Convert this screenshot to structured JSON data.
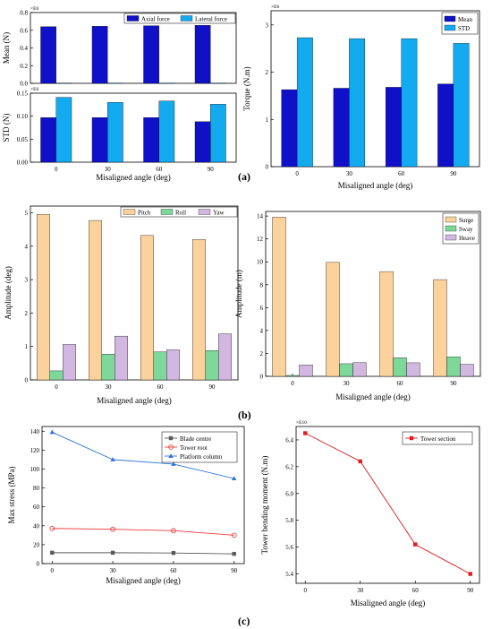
{
  "panel_labels": {
    "a": "(a)",
    "b": "(b)",
    "c": "(c)"
  },
  "colors": {
    "dark_blue": "#1010c8",
    "light_blue": "#14aaf0",
    "orange": "#fcd29c",
    "green": "#7dd89a",
    "purple": "#d2b8e0",
    "blade": "#5a5a5a",
    "tower": "#f03c3c",
    "platform": "#2e74d6",
    "tower_section": "#e31a1a"
  },
  "chart_data": [
    {
      "id": "a1",
      "type": "bar",
      "categories": [
        "0",
        "30",
        "60",
        "90"
      ],
      "series": [
        {
          "name": "Axial force",
          "values": [
            0.64,
            0.645,
            0.65,
            0.655
          ],
          "color_key": "dark_blue"
        },
        {
          "name": "Lateral force",
          "values": [
            0.004,
            0.004,
            0.004,
            0.004
          ],
          "color_key": "light_blue"
        }
      ],
      "ylabel": "Mean (N)",
      "xlabel": "",
      "scale_label": "×E6",
      "ylim": [
        0,
        0.8
      ],
      "yticks": [
        0,
        0.2,
        0.4,
        0.6,
        0.8
      ],
      "ytick_labels": [
        "0.0",
        "0.2",
        "0.4",
        "0.6",
        "0.8"
      ],
      "legend": "top-right",
      "show_xticks": false
    },
    {
      "id": "a2",
      "type": "bar",
      "categories": [
        "0",
        "30",
        "60",
        "90"
      ],
      "series": [
        {
          "name": "Axial force",
          "values": [
            0.097,
            0.097,
            0.097,
            0.088
          ],
          "color_key": "dark_blue"
        },
        {
          "name": "Lateral force",
          "values": [
            0.141,
            0.13,
            0.133,
            0.126
          ],
          "color_key": "light_blue"
        }
      ],
      "ylabel": "STD (N)",
      "xlabel": "Misaligned angle (deg)",
      "scale_label": "×E6",
      "ylim": [
        0,
        0.15
      ],
      "yticks": [
        0,
        0.05,
        0.1,
        0.15
      ],
      "ytick_labels": [
        "0.00",
        "0.05",
        "0.10",
        "0.15"
      ],
      "legend": "none",
      "show_xticks": true
    },
    {
      "id": "a3",
      "type": "bar",
      "categories": [
        "0",
        "30",
        "60",
        "90"
      ],
      "series": [
        {
          "name": "Mean",
          "values": [
            1.63,
            1.66,
            1.68,
            1.75
          ],
          "color_key": "dark_blue"
        },
        {
          "name": "STD",
          "values": [
            2.73,
            2.71,
            2.71,
            2.61
          ],
          "color_key": "light_blue"
        }
      ],
      "ylabel": "Torque (N.m)",
      "xlabel": "Misaligned angle (deg)",
      "scale_label": "×E6",
      "ylim": [
        0,
        3.3
      ],
      "yticks": [
        0,
        1,
        2,
        3
      ],
      "ytick_labels": [
        "0",
        "1",
        "2",
        "3"
      ],
      "legend": "top-right",
      "show_xticks": true
    },
    {
      "id": "b1",
      "type": "bar",
      "categories": [
        "0",
        "30",
        "60",
        "90"
      ],
      "series": [
        {
          "name": "Pitch",
          "values": [
            4.95,
            4.77,
            4.32,
            4.2
          ],
          "color_key": "orange"
        },
        {
          "name": "Roll",
          "values": [
            0.27,
            0.77,
            0.84,
            0.88
          ],
          "color_key": "green"
        },
        {
          "name": "Yaw",
          "values": [
            1.06,
            1.31,
            0.9,
            1.38
          ],
          "color_key": "purple"
        }
      ],
      "ylabel": "Amplitude (deg)",
      "xlabel": "Misaligned angle (deg)",
      "ylim": [
        0,
        5.2
      ],
      "yticks": [
        0,
        1,
        2,
        3,
        4,
        5
      ],
      "ytick_labels": [
        "0",
        "1",
        "2",
        "3",
        "4",
        "5"
      ],
      "legend": "top-right",
      "show_xticks": true
    },
    {
      "id": "b2",
      "type": "bar",
      "categories": [
        "0",
        "30",
        "60",
        "90"
      ],
      "series": [
        {
          "name": "Surge",
          "values": [
            13.9,
            9.95,
            9.15,
            8.45
          ],
          "color_key": "orange"
        },
        {
          "name": "Sway",
          "values": [
            0.08,
            1.1,
            1.63,
            1.7
          ],
          "color_key": "green"
        },
        {
          "name": "Heave",
          "values": [
            1.0,
            1.2,
            1.18,
            1.05
          ],
          "color_key": "purple"
        }
      ],
      "ylabel": "Amplitude (m)",
      "xlabel": "Misaligned angle (deg)",
      "ylim": [
        0,
        14.4
      ],
      "yticks": [
        0,
        2,
        4,
        6,
        8,
        10,
        12,
        14
      ],
      "ytick_labels": [
        "0",
        "2",
        "4",
        "6",
        "8",
        "10",
        "12",
        "14"
      ],
      "legend": "top-right",
      "show_xticks": true
    },
    {
      "id": "c1",
      "type": "line",
      "x": [
        0,
        30,
        60,
        90
      ],
      "series": [
        {
          "name": "Blade centre",
          "values": [
            11.5,
            11.5,
            11.2,
            10.3
          ],
          "color_key": "blade",
          "marker": "square"
        },
        {
          "name": "Tower root",
          "values": [
            37.2,
            36.3,
            34.8,
            30.0
          ],
          "color_key": "tower",
          "marker": "circle"
        },
        {
          "name": "Platform column",
          "values": [
            139,
            110,
            105.3,
            90
          ],
          "color_key": "platform",
          "marker": "triangle"
        }
      ],
      "ylabel": "Max stress (MPa)",
      "xlabel": "Misaligned angle (deg)",
      "xlim": [
        -5,
        95
      ],
      "xticks": [
        0,
        30,
        60,
        90
      ],
      "ylim": [
        0,
        145
      ],
      "yticks": [
        0,
        20,
        40,
        60,
        80,
        100,
        120,
        140
      ],
      "ytick_labels": [
        "0",
        "20",
        "40",
        "60",
        "80",
        "100",
        "120",
        "140"
      ],
      "legend": "top-right"
    },
    {
      "id": "c2",
      "type": "line",
      "x": [
        0,
        30,
        60,
        90
      ],
      "series": [
        {
          "name": "Tower section",
          "values": [
            6.45,
            6.24,
            5.62,
            5.4
          ],
          "color_key": "tower_section",
          "marker": "square"
        }
      ],
      "ylabel": "Tower bending moment (N.m)",
      "xlabel": "Misaligned angle (deg)",
      "scale_label": "×E10",
      "xlim": [
        -5,
        95
      ],
      "xticks": [
        0,
        30,
        60,
        90
      ],
      "ylim": [
        5.33,
        6.5
      ],
      "yticks": [
        5.4,
        5.6,
        5.8,
        6.0,
        6.2,
        6.4
      ],
      "ytick_labels": [
        "5.4",
        "5.6",
        "5.8",
        "6.0",
        "6.2",
        "6.4"
      ],
      "legend": "top-right"
    }
  ]
}
